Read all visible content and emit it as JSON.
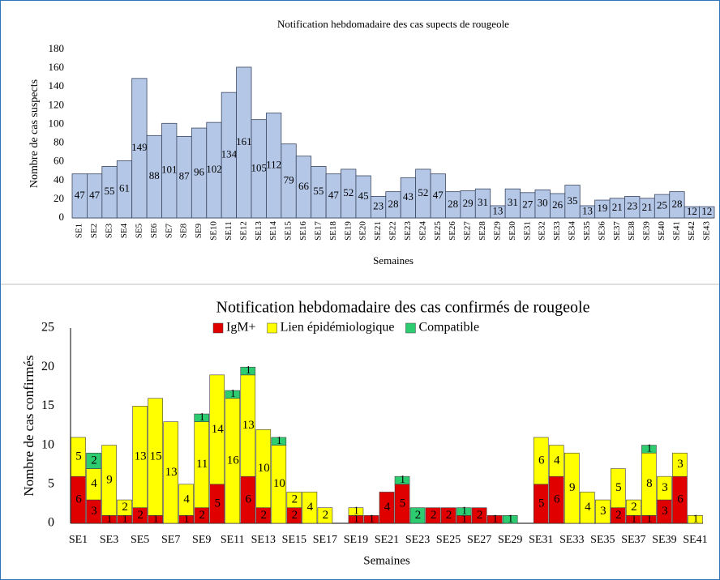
{
  "chart_data": [
    {
      "type": "bar",
      "title": "Notification hebdomadaire des cas supects de rougeole",
      "y_label": "Nombre de cas suspects",
      "x_label": "Semaines",
      "categories": [
        "SE1",
        "SE2",
        "SE3",
        "SE4",
        "SE5",
        "SE6",
        "SE7",
        "SE8",
        "SE9",
        "SE10",
        "SE11",
        "SE12",
        "SE13",
        "SE14",
        "SE15",
        "SE16",
        "SE17",
        "SE18",
        "SE19",
        "SE20",
        "SE21",
        "SE22",
        "SE23",
        "SE24",
        "SE25",
        "SE26",
        "SE27",
        "SE28",
        "SE29",
        "SE30",
        "SE31",
        "SE32",
        "SE33",
        "SE34",
        "SE35",
        "SE36",
        "SE37",
        "SE38",
        "SE39",
        "SE40",
        "SE41",
        "SE42",
        "SE43"
      ],
      "values": [
        47,
        47,
        55,
        61,
        149,
        88,
        101,
        87,
        96,
        102,
        134,
        161,
        105,
        112,
        79,
        66,
        55,
        47,
        52,
        45,
        23,
        28,
        43,
        52,
        47,
        28,
        29,
        31,
        13,
        31,
        27,
        30,
        26,
        35,
        13,
        19,
        21,
        23,
        21,
        25,
        28,
        12,
        12
      ],
      "color": "#b4c7e7",
      "ylim": [
        0,
        180
      ],
      "yticks": [
        0,
        20,
        40,
        60,
        80,
        100,
        120,
        140,
        160,
        180
      ],
      "grid": false
    },
    {
      "type": "stacked_bar",
      "title": "Notification hebdomadaire des cas confirmés de rougeole",
      "y_label": "Nombre de cas confirmés",
      "x_label": "Semaines",
      "categories": [
        "SE1",
        null,
        "SE3",
        null,
        "SE5",
        null,
        "SE7",
        null,
        "SE9",
        null,
        "SE11",
        null,
        "SE13",
        null,
        "SE15",
        null,
        "SE17",
        null,
        "SE19",
        null,
        "SE21",
        null,
        "SE23",
        null,
        "SE25",
        null,
        "SE27",
        null,
        "SE29",
        null,
        "SE31",
        null,
        "SE33",
        null,
        "SE35",
        null,
        "SE37",
        null,
        "SE39",
        null,
        "SE41"
      ],
      "series": [
        {
          "name": "IgM+",
          "color": "#e00000",
          "values": [
            6,
            3,
            1,
            1,
            2,
            1,
            0,
            1,
            2,
            5,
            0,
            6,
            2,
            0,
            2,
            0,
            0,
            0,
            1,
            1,
            4,
            5,
            0,
            2,
            2,
            1,
            2,
            1,
            0,
            0,
            5,
            6,
            0,
            0,
            0,
            2,
            1,
            1,
            3,
            6,
            0
          ]
        },
        {
          "name": "Lien épidémiologique",
          "color": "#ffff00",
          "values": [
            5,
            4,
            9,
            2,
            13,
            15,
            13,
            4,
            11,
            14,
            16,
            13,
            10,
            10,
            2,
            4,
            2,
            0,
            1,
            0,
            0,
            0,
            0,
            0,
            0,
            0,
            0,
            0,
            0,
            0,
            6,
            4,
            9,
            4,
            3,
            5,
            2,
            8,
            3,
            3,
            1
          ]
        },
        {
          "name": "Compatible",
          "color": "#2ecc71",
          "values": [
            0,
            2,
            0,
            0,
            0,
            0,
            0,
            0,
            1,
            0,
            1,
            1,
            0,
            1,
            0,
            0,
            0,
            0,
            0,
            0,
            0,
            1,
            2,
            0,
            0,
            1,
            0,
            0,
            1,
            0,
            0,
            0,
            0,
            0,
            0,
            0,
            0,
            1,
            0,
            0,
            0
          ]
        }
      ],
      "ylim": [
        0,
        25
      ],
      "yticks": [
        0,
        5,
        10,
        15,
        20,
        25
      ],
      "grid": false,
      "legend": "top"
    }
  ]
}
